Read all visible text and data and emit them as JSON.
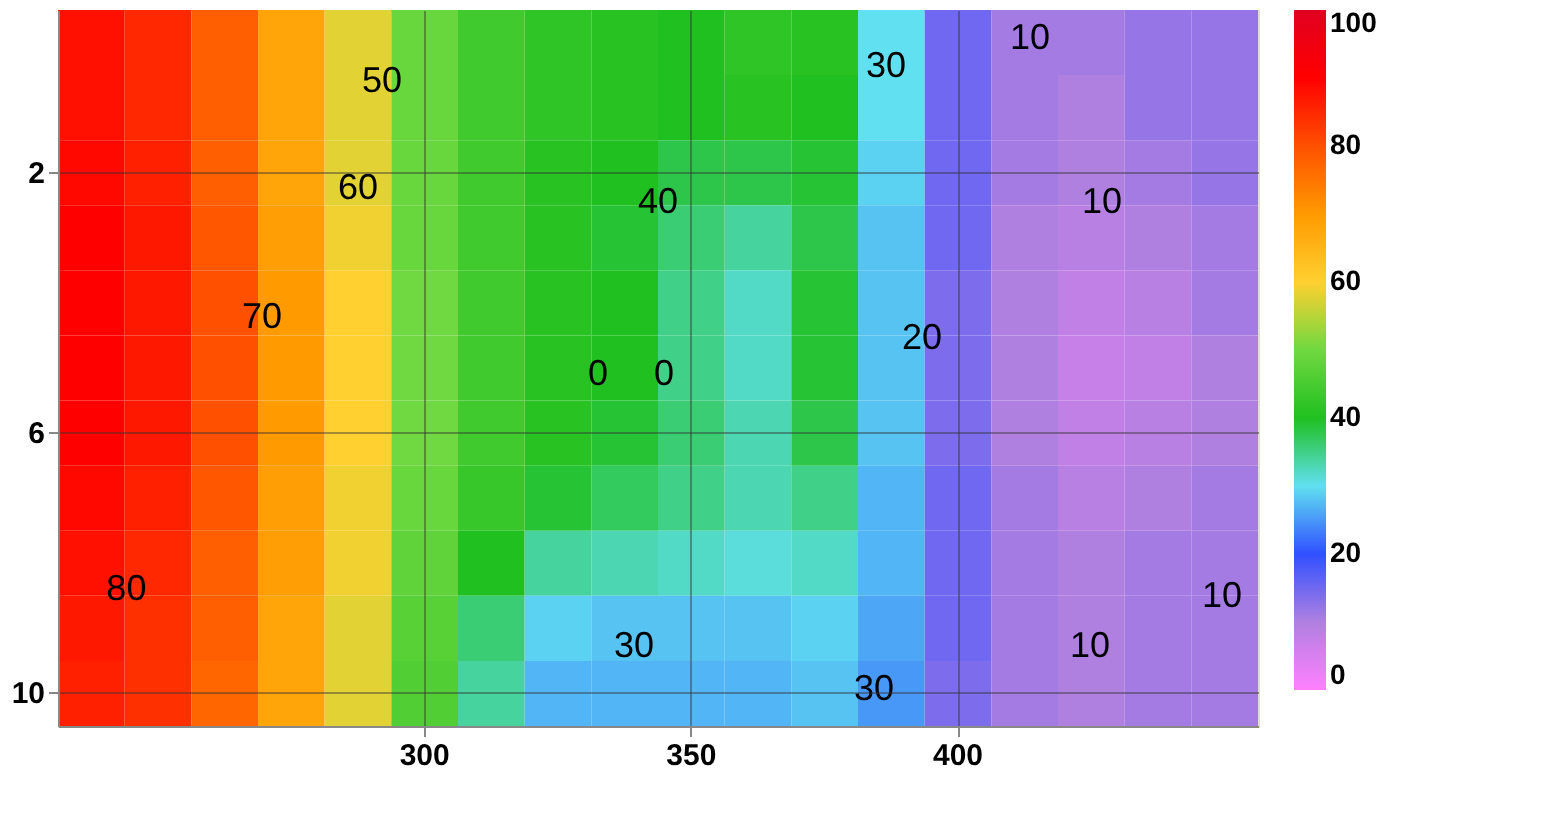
{
  "chart_data": {
    "type": "heatmap",
    "categories": [
      null,
      null,
      null,
      null,
      null,
      "300",
      null,
      null,
      null,
      "350",
      null,
      null,
      null,
      "400",
      null,
      null,
      null,
      null
    ],
    "y_categories": [
      null,
      null,
      "2",
      null,
      null,
      null,
      "6",
      null,
      null,
      null,
      "10"
    ],
    "cells": [
      [
        88,
        85,
        78,
        68,
        58,
        49,
        44,
        42,
        41,
        40,
        42,
        41,
        30,
        15,
        11,
        11,
        12,
        12
      ],
      [
        88,
        85,
        78,
        68,
        58,
        49,
        44,
        42,
        41,
        40,
        41,
        40,
        30,
        15,
        11,
        10,
        12,
        12
      ],
      [
        89,
        86,
        78,
        68,
        58,
        49,
        44,
        41,
        40,
        38,
        38,
        39,
        29,
        15,
        11,
        10,
        11,
        12
      ],
      [
        90,
        87,
        79,
        69,
        59,
        49,
        44,
        41,
        39,
        36,
        34,
        38,
        28,
        15,
        10,
        9,
        10,
        11
      ],
      [
        90,
        87,
        80,
        70,
        60,
        50,
        44,
        41,
        40,
        35,
        32,
        39,
        28,
        14,
        10,
        8,
        9,
        11
      ],
      [
        90,
        87,
        80,
        70,
        60,
        50,
        44,
        41,
        40,
        35,
        32,
        39,
        28,
        14,
        10,
        7,
        8,
        10
      ],
      [
        90,
        87,
        80,
        70,
        60,
        50,
        44,
        41,
        39,
        36,
        33,
        38,
        28,
        14,
        10,
        8,
        9,
        10
      ],
      [
        89,
        86,
        79,
        69,
        59,
        49,
        43,
        39,
        37,
        35,
        33,
        35,
        27,
        15,
        11,
        9,
        10,
        11
      ],
      [
        88,
        85,
        78,
        69,
        59,
        48,
        40,
        34,
        33,
        32,
        31,
        32,
        27,
        15,
        11,
        10,
        11,
        11
      ],
      [
        87,
        84,
        78,
        68,
        58,
        47,
        36,
        29,
        28,
        28,
        28,
        29,
        26,
        15,
        11,
        10,
        11,
        11
      ],
      [
        86,
        84,
        77,
        68,
        58,
        46,
        34,
        27,
        27,
        27,
        27,
        28,
        25,
        14,
        11,
        10,
        11,
        11
      ]
    ],
    "colors": [
      "#ff80ff",
      "#b080e0",
      "#3050ff",
      "#60e0f0",
      "#20c020",
      "#70d840",
      "#ffd030",
      "#ff9a00",
      "#ff5000",
      "#ff0000",
      "#e00020"
    ],
    "clim": [
      0,
      100
    ],
    "cticks": [
      0,
      20,
      40,
      60,
      80,
      100
    ],
    "grid": true,
    "annotations": [
      "80",
      "70",
      "60",
      "50",
      "40",
      "0",
      "0",
      "30",
      "30",
      "20",
      "30",
      "10",
      "10",
      "10",
      "10"
    ]
  }
}
